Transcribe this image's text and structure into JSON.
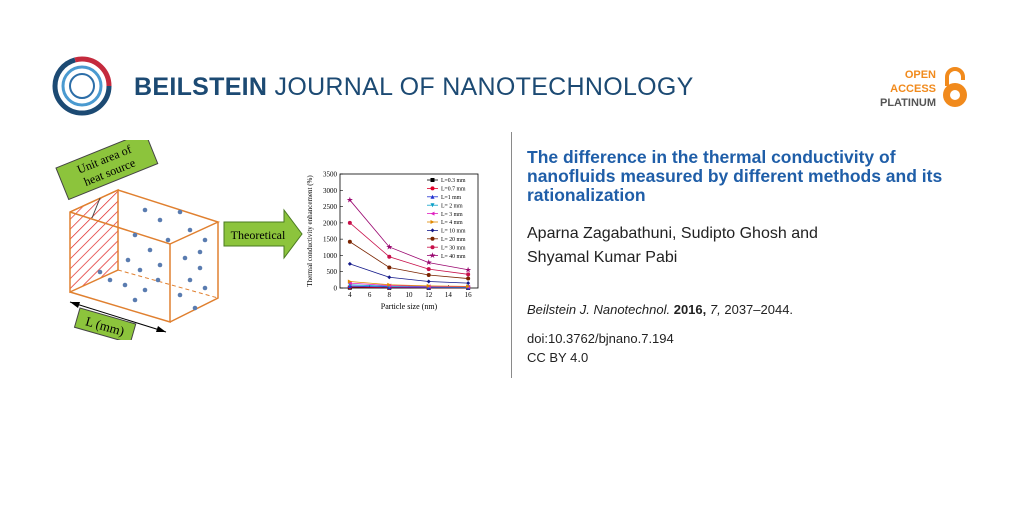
{
  "header": {
    "journal_bold": "BEILSTEIN",
    "journal_rest": " JOURNAL OF NANOTECHNOLOGY",
    "open_access": [
      "OPEN",
      "ACCESS",
      "PLATINUM"
    ],
    "colors": {
      "journal": "#1c4a73",
      "open_access": "#f18a1c",
      "platinum": "#555555"
    }
  },
  "article": {
    "title": "The difference in the thermal conductivity of nanofluids measured by different methods and its rationalization",
    "authors": "Aparna Zagabathuni, Sudipto Ghosh and Shyamal Kumar Pabi",
    "citation": {
      "journal": "Beilstein J. Nanotechnol.",
      "year": "2016,",
      "volume": "7,",
      "pages": "2037–2044."
    },
    "doi": "doi:10.3762/bjnano.7.194",
    "license": "CC BY 4.0",
    "title_color": "#1f5ea8"
  },
  "graphic": {
    "unit_area_label": [
      "Unit area of",
      "heat source"
    ],
    "length_label": "L (mm)",
    "arrow_label": "Theoretical"
  },
  "chart_data": {
    "type": "line",
    "xlabel": "Particle size (nm)",
    "ylabel": "Thermal conductivity enhancement (%)",
    "x": [
      4,
      8,
      12,
      16
    ],
    "xticks": [
      4,
      6,
      8,
      10,
      12,
      14,
      16
    ],
    "yticks": [
      0,
      500,
      1000,
      1500,
      2000,
      2500,
      3000,
      3500
    ],
    "xlim": [
      3,
      17
    ],
    "ylim": [
      0,
      3500
    ],
    "legend_position": "top-right",
    "series": [
      {
        "name": "L=0.3 mm",
        "color": "#000000",
        "marker": "square",
        "values": [
          10,
          5,
          3,
          2
        ]
      },
      {
        "name": "L=0.7 mm",
        "color": "#e0002a",
        "marker": "circle",
        "values": [
          30,
          15,
          10,
          8
        ]
      },
      {
        "name": "L=1 mm",
        "color": "#2030d0",
        "marker": "triangle",
        "values": [
          60,
          30,
          20,
          15
        ]
      },
      {
        "name": "L= 2 mm",
        "color": "#0aa0c8",
        "marker": "tri-down",
        "values": [
          100,
          50,
          35,
          25
        ]
      },
      {
        "name": "L= 3 mm",
        "color": "#e020c0",
        "marker": "tri-left",
        "values": [
          150,
          75,
          50,
          40
        ]
      },
      {
        "name": "L= 4 mm",
        "color": "#e08800",
        "marker": "tri-right",
        "values": [
          200,
          100,
          65,
          50
        ]
      },
      {
        "name": "L= 10 mm",
        "color": "#141a8a",
        "marker": "diamond",
        "values": [
          740,
          330,
          200,
          150
        ]
      },
      {
        "name": "L= 20 mm",
        "color": "#7a2400",
        "marker": "circle",
        "values": [
          1420,
          630,
          400,
          290
        ]
      },
      {
        "name": "L= 30 mm",
        "color": "#c8104a",
        "marker": "circle",
        "values": [
          2000,
          960,
          580,
          420
        ]
      },
      {
        "name": "L= 40 mm",
        "color": "#9a0870",
        "marker": "star",
        "values": [
          2700,
          1260,
          780,
          560
        ]
      }
    ]
  }
}
